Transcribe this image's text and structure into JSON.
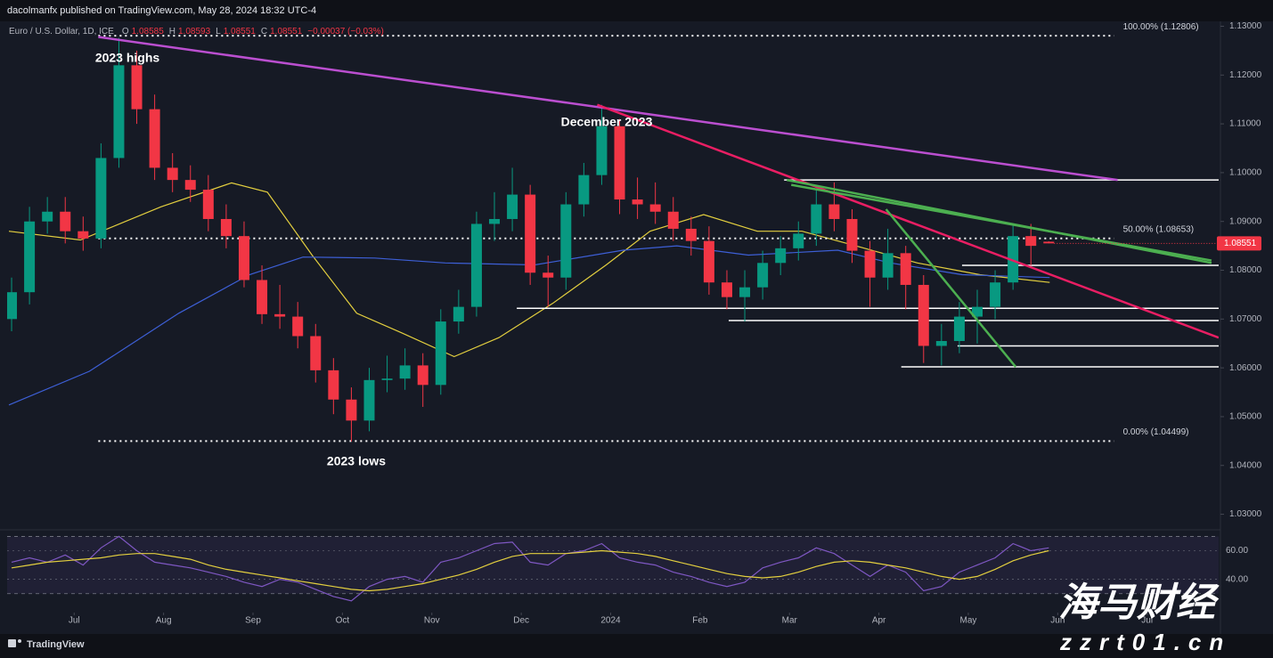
{
  "header": {
    "author_line": "dacolmanfx published on TradingView.com, May 28, 2024 18:32 UTC-4",
    "symbol": "Euro / U.S. Dollar, 1D, ICE",
    "o_label": "O",
    "h_label": "H",
    "l_label": "L",
    "c_label": "C",
    "change": "−0.00037 (−0.03%)"
  },
  "footer": {
    "brand": "TradingView"
  },
  "watermark": {
    "title": "海马财经",
    "url": "zzrt01.cn"
  },
  "chart_data": {
    "type": "candlestick",
    "x": [
      -0.7,
      -0.5,
      -0.3,
      -0.1,
      0.1,
      0.3,
      0.5,
      0.7,
      0.9,
      1.1,
      1.3,
      1.5,
      1.7,
      1.9,
      2.1,
      2.3,
      2.5,
      2.7,
      2.9,
      3.1,
      3.3,
      3.5,
      3.7,
      3.9,
      4.1,
      4.3,
      4.5,
      4.7,
      4.9,
      5.1,
      5.3,
      5.5,
      5.7,
      5.9,
      6.1,
      6.3,
      6.5,
      6.7,
      6.9,
      7.1,
      7.3,
      7.5,
      7.7,
      7.9,
      8.1,
      8.3,
      8.5,
      8.7,
      8.9,
      9.1,
      9.3,
      9.5,
      9.7,
      9.9,
      10.1,
      10.3,
      10.5,
      10.7,
      10.9
    ],
    "open": [
      1.07,
      1.0755,
      1.09,
      1.092,
      1.088,
      1.0865,
      1.103,
      1.122,
      1.113,
      1.101,
      1.0985,
      1.0965,
      1.0905,
      1.087,
      1.078,
      1.071,
      1.0705,
      1.0665,
      1.0595,
      1.0535,
      1.0492,
      1.0575,
      1.0578,
      1.0605,
      1.0565,
      1.0695,
      1.0725,
      1.0895,
      1.0905,
      1.0955,
      1.0795,
      1.0785,
      1.0935,
      1.0995,
      1.1095,
      1.0945,
      1.0935,
      1.092,
      1.0885,
      1.086,
      1.0775,
      1.0745,
      1.0765,
      1.0815,
      1.0845,
      1.0875,
      1.0935,
      1.0905,
      1.084,
      1.0785,
      1.0835,
      1.077,
      1.0645,
      1.0655,
      1.0705,
      1.0725,
      1.0775,
      1.087,
      1.08585
    ],
    "high": [
      1.0785,
      1.093,
      1.095,
      1.095,
      1.091,
      1.106,
      1.1276,
      1.125,
      1.116,
      1.104,
      1.1015,
      1.0995,
      1.0935,
      1.09,
      1.081,
      1.077,
      1.0735,
      1.069,
      1.062,
      1.056,
      1.06,
      1.0625,
      1.064,
      1.063,
      1.072,
      1.076,
      1.092,
      1.096,
      1.101,
      1.0975,
      1.083,
      1.096,
      1.102,
      1.1139,
      1.111,
      1.099,
      1.098,
      1.095,
      1.091,
      1.089,
      1.08,
      1.08,
      1.084,
      1.087,
      1.09,
      1.0965,
      1.098,
      1.0925,
      1.086,
      1.0885,
      1.085,
      1.079,
      1.069,
      1.0735,
      1.076,
      1.08,
      1.0895,
      1.0895,
      1.08593
    ],
    "low": [
      1.0675,
      1.073,
      1.0875,
      1.0855,
      1.084,
      1.0845,
      1.101,
      1.11,
      1.0985,
      1.096,
      1.094,
      1.088,
      1.0845,
      1.0765,
      1.069,
      1.068,
      1.064,
      1.057,
      1.0505,
      1.0449,
      1.047,
      1.055,
      1.0555,
      1.052,
      1.0545,
      1.067,
      1.0705,
      1.086,
      1.088,
      1.077,
      1.0725,
      1.076,
      1.091,
      1.0975,
      1.0915,
      1.0905,
      1.0895,
      1.086,
      1.083,
      1.075,
      1.072,
      1.0695,
      1.074,
      1.079,
      1.082,
      1.085,
      1.088,
      1.0815,
      1.0725,
      1.076,
      1.072,
      1.061,
      1.0605,
      1.063,
      1.065,
      1.07,
      1.076,
      1.081,
      1.08551
    ],
    "close": [
      1.0755,
      1.09,
      1.092,
      1.088,
      1.0865,
      1.103,
      1.122,
      1.113,
      1.101,
      1.0985,
      1.0965,
      1.0905,
      1.087,
      1.078,
      1.071,
      1.0705,
      1.0665,
      1.0595,
      1.0535,
      1.0492,
      1.0575,
      1.0578,
      1.0605,
      1.0565,
      1.0695,
      1.0725,
      1.0895,
      1.0905,
      1.0955,
      1.0795,
      1.0785,
      1.0935,
      1.0995,
      1.1095,
      1.0945,
      1.0935,
      1.092,
      1.0885,
      1.086,
      1.0775,
      1.0745,
      1.0765,
      1.0815,
      1.0845,
      1.0875,
      1.0935,
      1.0905,
      1.084,
      1.0785,
      1.0835,
      1.077,
      1.0645,
      1.0655,
      1.0705,
      1.0725,
      1.0775,
      1.087,
      1.085,
      1.08551
    ],
    "up_color": "#089981",
    "down_color": "#f23645",
    "xlim": [
      -0.75,
      12.8
    ],
    "xticks": [
      {
        "value": 0,
        "label": "Jul"
      },
      {
        "value": 1,
        "label": "Aug"
      },
      {
        "value": 2,
        "label": "Sep"
      },
      {
        "value": 3,
        "label": "Oct"
      },
      {
        "value": 4,
        "label": "Nov"
      },
      {
        "value": 5,
        "label": "Dec"
      },
      {
        "value": 6,
        "label": "2024"
      },
      {
        "value": 7,
        "label": "Feb"
      },
      {
        "value": 8,
        "label": "Mar"
      },
      {
        "value": 9,
        "label": "Apr"
      },
      {
        "value": 10,
        "label": "May"
      },
      {
        "value": 11,
        "label": "Jun"
      },
      {
        "value": 12,
        "label": "Jul"
      }
    ],
    "ylim": [
      1.027,
      1.131
    ],
    "yticks": [
      {
        "value": 1.13,
        "label": "1.13000"
      },
      {
        "value": 1.12,
        "label": "1.12000"
      },
      {
        "value": 1.11,
        "label": "1.11000"
      },
      {
        "value": 1.1,
        "label": "1.10000"
      },
      {
        "value": 1.09,
        "label": "1.09000"
      },
      {
        "value": 1.08,
        "label": "1.08000"
      },
      {
        "value": 1.07,
        "label": "1.07000"
      },
      {
        "value": 1.06,
        "label": "1.06000"
      },
      {
        "value": 1.05,
        "label": "1.05000"
      },
      {
        "value": 1.04,
        "label": "1.04000"
      },
      {
        "value": 1.03,
        "label": "1.03000"
      }
    ],
    "overlays": [
      {
        "color": "#e3cf3f",
        "x": [
          -0.73,
          0.07,
          0.97,
          1.76,
          2.16,
          2.66,
          3.16,
          3.66,
          4.25,
          4.75,
          5.35,
          5.95,
          6.44,
          7.04,
          7.64,
          8.14,
          8.74,
          9.43,
          10.13,
          10.91
        ],
        "values": [
          1.088,
          1.0862,
          1.093,
          1.0979,
          1.096,
          1.0831,
          1.0712,
          1.0672,
          1.0623,
          1.0662,
          1.0732,
          1.0811,
          1.088,
          1.0914,
          1.088,
          1.088,
          1.085,
          1.0815,
          1.0791,
          1.0775
        ]
      },
      {
        "color": "#3d5fd6",
        "x": [
          -0.73,
          0.17,
          1.17,
          1.96,
          2.56,
          3.36,
          4.15,
          5.15,
          6.14,
          6.74,
          7.54,
          8.54,
          9.13,
          9.93,
          10.91
        ],
        "values": [
          1.0524,
          1.0593,
          1.0712,
          1.0791,
          1.0827,
          1.0825,
          1.0815,
          1.0811,
          1.0841,
          1.085,
          1.0831,
          1.0841,
          1.0815,
          1.0791,
          1.0785
        ]
      }
    ],
    "fib_color": "#ffffff",
    "fib_x": [
      0.27,
      11.63
    ],
    "fib_levels": [
      {
        "value": 1.12806,
        "label": "100.00% (1.12806)"
      },
      {
        "value": 1.08653,
        "label": "50.00% (1.08653)"
      },
      {
        "value": 1.04499,
        "label": "0.00% (1.04499)"
      }
    ],
    "trendlines": [
      {
        "color": "#bb4fd0",
        "x": [
          0.27,
          11.67
        ],
        "values": [
          1.1278,
          1.0985
        ]
      },
      {
        "color": "#e91e63",
        "x": [
          5.85,
          12.8
        ],
        "values": [
          1.1139,
          1.0662
        ]
      },
      {
        "color": "#4caf50",
        "x": [
          7.97,
          12.72
        ],
        "values": [
          1.0985,
          1.0815
        ]
      },
      {
        "color": "#4caf50",
        "x": [
          8.02,
          12.72
        ],
        "values": [
          1.0975,
          1.082
        ]
      },
      {
        "color": "#4caf50",
        "x": [
          9.08,
          10.53
        ],
        "values": [
          1.0925,
          1.0602
        ]
      }
    ],
    "hlines": [
      {
        "color": "#ffffff",
        "x": [
          7.94,
          12.8
        ],
        "value": 1.0985
      },
      {
        "color": "#ffffff",
        "x": [
          9.93,
          12.8
        ],
        "value": 1.081
      },
      {
        "color": "#ffffff",
        "x": [
          4.95,
          12.8
        ],
        "value": 1.0722
      },
      {
        "color": "#ffffff",
        "x": [
          7.32,
          12.8
        ],
        "value": 1.0697
      },
      {
        "color": "#ffffff",
        "x": [
          9.88,
          12.8
        ],
        "value": 1.0645
      },
      {
        "color": "#ffffff",
        "x": [
          9.25,
          12.8
        ],
        "value": 1.0602
      }
    ],
    "annotations": [
      "2023 highs",
      "December 2023",
      "2023 lows"
    ],
    "rsi": {
      "ylim": [
        18,
        74
      ],
      "yticks": [
        {
          "value": 60,
          "label": "60.00"
        },
        {
          "value": 40,
          "label": "40.00"
        }
      ],
      "bands": [
        30,
        70
      ],
      "band_color": "#7e57c2",
      "series": [
        {
          "color": "#7e57c2",
          "values": [
            52,
            55,
            52,
            57,
            50,
            62,
            70,
            60,
            52,
            50,
            48,
            45,
            42,
            38,
            35,
            40,
            38,
            33,
            28,
            25,
            35,
            40,
            42,
            38,
            52,
            55,
            60,
            65,
            66,
            52,
            50,
            58,
            60,
            65,
            55,
            52,
            50,
            45,
            42,
            38,
            35,
            38,
            48,
            52,
            55,
            62,
            58,
            50,
            42,
            50,
            45,
            32,
            35,
            45,
            50,
            55,
            65,
            60,
            62
          ]
        },
        {
          "color": "#e3cf3f",
          "values": [
            48,
            50,
            52,
            53,
            54,
            55,
            57,
            58,
            58,
            56,
            54,
            50,
            47,
            45,
            43,
            41,
            39,
            37,
            35,
            33,
            32,
            33,
            35,
            37,
            40,
            43,
            47,
            52,
            56,
            58,
            58,
            58,
            59,
            60,
            59,
            58,
            56,
            53,
            50,
            47,
            44,
            42,
            41,
            42,
            45,
            49,
            52,
            53,
            52,
            50,
            48,
            45,
            42,
            40,
            42,
            47,
            53,
            57,
            60
          ]
        }
      ]
    }
  }
}
